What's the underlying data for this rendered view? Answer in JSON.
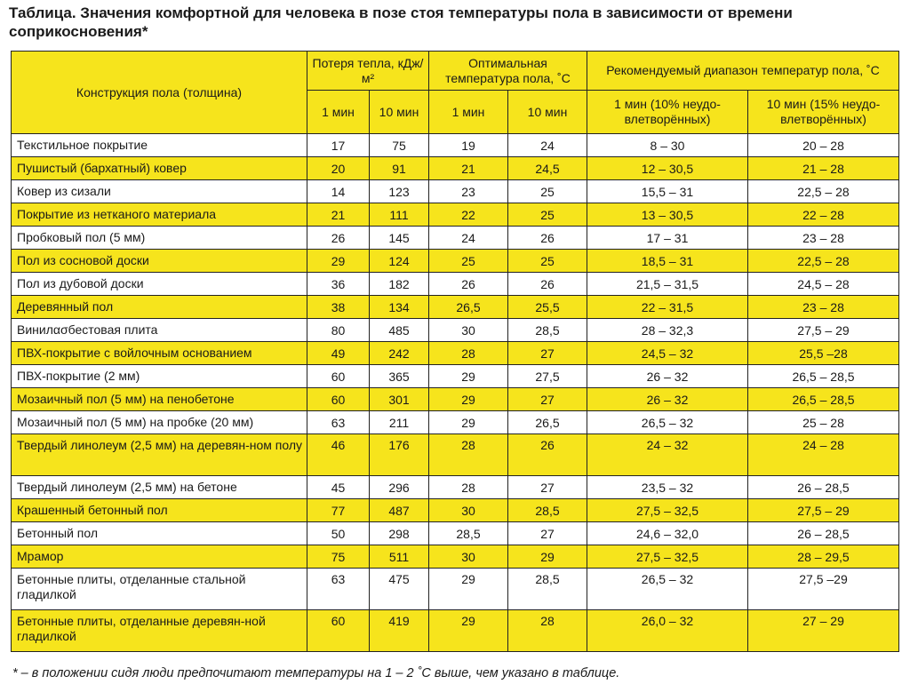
{
  "title": "Таблица. Значения комфортной для человека в позе стоя температуры пола в зависимости от времени соприкосновения*",
  "headers": {
    "construction": "Конструкция пола (толщина)",
    "heat_loss": "Потеря тепла, кДж/м²",
    "optimal": "Оптимальная температура пола, ˚С",
    "recommended": "Рекомендуемый диапазон температур пола, ˚С",
    "h1": "1 мин",
    "h10": "10 мин",
    "o1": "1 мин",
    "o10": "10 мин",
    "r1": "1 мин  (10% неудо-влетворённых)",
    "r10": "10 мин (15% неудо-влетворённых)"
  },
  "rows": [
    [
      "Текстильное покрытие",
      "17",
      "75",
      "19",
      "24",
      "8 – 30",
      "20 – 28"
    ],
    [
      "Пушистый (бархатный) ковер",
      "20",
      "91",
      "21",
      "24,5",
      "12 – 30,5",
      "21 – 28"
    ],
    [
      "Ковер из сизали",
      "14",
      "123",
      "23",
      "25",
      "15,5 – 31",
      "22,5 – 28"
    ],
    [
      "Покрытие из нетканого материала",
      "21",
      "111",
      "22",
      "25",
      "13 – 30,5",
      "22 – 28"
    ],
    [
      "Пробковый пол (5 мм)",
      "26",
      "145",
      "24",
      "26",
      "17 – 31",
      "23 – 28"
    ],
    [
      "Пол из сосновой доски",
      "29",
      "124",
      "25",
      "25",
      "18,5 – 31",
      "22,5 – 28"
    ],
    [
      "Пол из дубовой доски",
      "36",
      "182",
      "26",
      "26",
      "21,5 – 31,5",
      "24,5 – 28"
    ],
    [
      "Деревянный пол",
      "38",
      "134",
      "26,5",
      "25,5",
      "22 – 31,5",
      "23 – 28"
    ],
    [
      "Винилασбестовая плита",
      "80",
      "485",
      "30",
      "28,5",
      "28 – 32,3",
      "27,5 – 29"
    ],
    [
      "ПВХ-покрытие с войлочным основанием",
      "49",
      "242",
      "28",
      "27",
      "24,5 – 32",
      "25,5 –28"
    ],
    [
      "ПВХ-покрытие (2 мм)",
      "60",
      "365",
      "29",
      "27,5",
      "26 – 32",
      "26,5 – 28,5"
    ],
    [
      "Мозаичный пол (5 мм) на пенобетоне",
      "60",
      "301",
      "29",
      "27",
      "26 – 32",
      "26,5 – 28,5"
    ],
    [
      "Мозаичный пол (5 мм) на пробке (20 мм)",
      "63",
      "211",
      "29",
      "26,5",
      "26,5 – 32",
      "25 – 28"
    ],
    [
      "Твердый линолеум (2,5 мм) на деревян-ном полу",
      "46",
      "176",
      "28",
      "26",
      "24 – 32",
      "24 – 28"
    ],
    [
      "Твердый линолеум (2,5 мм) на бетоне",
      "45",
      "296",
      "28",
      "27",
      "23,5 – 32",
      "26 – 28,5"
    ],
    [
      "Крашенный бетонный пол",
      "77",
      "487",
      "30",
      "28,5",
      "27,5 – 32,5",
      "27,5 – 29"
    ],
    [
      "Бетонный пол",
      "50",
      "298",
      "28,5",
      "27",
      "24,6 – 32,0",
      "26 – 28,5"
    ],
    [
      "Мрамор",
      "75",
      "511",
      "30",
      "29",
      "27,5 – 32,5",
      "28 – 29,5"
    ],
    [
      "Бетонные плиты, отделанные стальной гладилкой",
      "63",
      "475",
      "29",
      "28,5",
      "26,5 – 32",
      "27,5 –29"
    ],
    [
      "Бетонные плиты, отделанные деревян-ной гладилкой",
      "60",
      "419",
      "29",
      "28",
      "26,0 – 32",
      "27 – 29"
    ]
  ],
  "footnote": "* – в положении сидя люди предпочитают температуры на 1 – 2 ˚С выше, чем указано в таблице.",
  "colors": {
    "highlight": "#f6e41c"
  }
}
